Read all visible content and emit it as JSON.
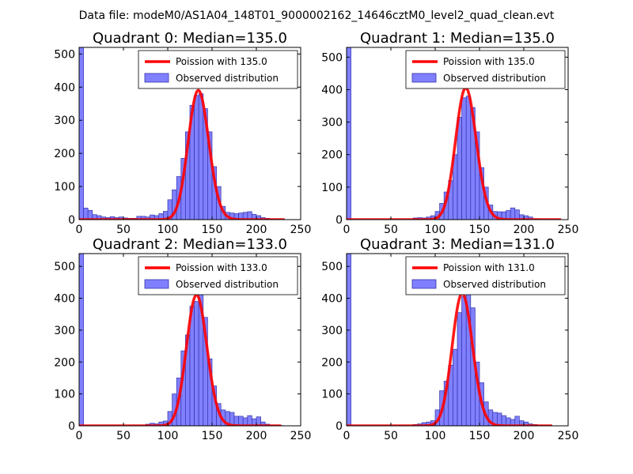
{
  "figure": {
    "suptitle": "Data file: modeM0/AS1A04_148T01_9000002162_14646cztM0_level2_quad_clean.evt",
    "colors": {
      "poisson": "#ff0000",
      "hist_fill": "#8080ff",
      "hist_edge": "#3333aa"
    }
  },
  "chart_data": [
    {
      "type": "bar",
      "title": "Quadrant 0: Median=135.0",
      "xlim": [
        0,
        250
      ],
      "ylim": [
        0,
        520
      ],
      "xticks": [
        0,
        50,
        100,
        150,
        200,
        250
      ],
      "yticks": [
        0,
        100,
        200,
        300,
        400,
        500
      ],
      "legend": {
        "line": "Poission with 135.0",
        "bars": "Observed distribution",
        "position": "top-right"
      },
      "poisson_mean": 135.0,
      "poisson_peak": 390,
      "poisson_range": [
        0,
        232
      ],
      "histogram": {
        "bin_width": 5,
        "bin_starts": [
          0,
          5,
          10,
          15,
          20,
          25,
          30,
          35,
          40,
          45,
          50,
          55,
          60,
          65,
          70,
          75,
          80,
          85,
          90,
          95,
          100,
          105,
          110,
          115,
          120,
          125,
          130,
          135,
          140,
          145,
          150,
          155,
          160,
          165,
          170,
          175,
          180,
          185,
          190,
          195,
          200,
          205,
          210,
          215,
          220,
          225
        ],
        "counts": [
          520,
          35,
          28,
          15,
          12,
          8,
          6,
          9,
          6,
          8,
          5,
          4,
          4,
          10,
          10,
          8,
          14,
          12,
          18,
          25,
          60,
          90,
          130,
          185,
          265,
          345,
          375,
          380,
          335,
          265,
          160,
          100,
          40,
          22,
          20,
          18,
          20,
          22,
          24,
          16,
          12,
          6,
          4,
          2,
          2,
          1
        ]
      }
    },
    {
      "type": "bar",
      "title": "Quadrant 1: Median=135.0",
      "xlim": [
        0,
        250
      ],
      "ylim": [
        0,
        530
      ],
      "xticks": [
        0,
        50,
        100,
        150,
        200,
        250
      ],
      "yticks": [
        0,
        100,
        200,
        300,
        400,
        500
      ],
      "legend": {
        "line": "Poission with 135.0",
        "bars": "Observed distribution",
        "position": "top-right"
      },
      "poisson_mean": 135.0,
      "poisson_peak": 405,
      "poisson_range": [
        0,
        242
      ],
      "histogram": {
        "bin_width": 5,
        "bin_starts": [
          0,
          5,
          10,
          15,
          20,
          25,
          30,
          35,
          40,
          45,
          50,
          55,
          60,
          65,
          70,
          75,
          80,
          85,
          90,
          95,
          100,
          105,
          110,
          115,
          120,
          125,
          130,
          135,
          140,
          145,
          150,
          155,
          160,
          165,
          170,
          175,
          180,
          185,
          190,
          195,
          200,
          205,
          210,
          215,
          220,
          225,
          230,
          235
        ],
        "counts": [
          530,
          0,
          0,
          0,
          0,
          0,
          0,
          0,
          0,
          0,
          0,
          0,
          0,
          0,
          0,
          5,
          6,
          5,
          8,
          12,
          25,
          50,
          85,
          120,
          200,
          315,
          375,
          380,
          345,
          270,
          160,
          100,
          45,
          25,
          24,
          24,
          28,
          36,
          30,
          15,
          12,
          8,
          3,
          2,
          1,
          1,
          1,
          1
        ]
      }
    },
    {
      "type": "bar",
      "title": "Quadrant 2: Median=133.0",
      "xlim": [
        0,
        250
      ],
      "ylim": [
        0,
        540
      ],
      "xticks": [
        0,
        50,
        100,
        150,
        200,
        250
      ],
      "yticks": [
        0,
        100,
        200,
        300,
        400,
        500
      ],
      "legend": {
        "line": "Poission with 133.0",
        "bars": "Observed distribution",
        "position": "top-right"
      },
      "poisson_mean": 133.0,
      "poisson_peak": 410,
      "poisson_range": [
        0,
        228
      ],
      "histogram": {
        "bin_width": 5,
        "bin_starts": [
          0,
          5,
          10,
          15,
          20,
          25,
          30,
          35,
          40,
          45,
          50,
          55,
          60,
          65,
          70,
          75,
          80,
          85,
          90,
          95,
          100,
          105,
          110,
          115,
          120,
          125,
          130,
          135,
          140,
          145,
          150,
          155,
          160,
          165,
          170,
          175,
          180,
          185,
          190,
          195,
          200,
          205,
          210,
          215,
          220,
          225
        ],
        "counts": [
          540,
          0,
          0,
          0,
          0,
          0,
          0,
          0,
          0,
          0,
          0,
          0,
          0,
          0,
          0,
          5,
          8,
          6,
          12,
          15,
          45,
          100,
          150,
          235,
          285,
          375,
          390,
          430,
          340,
          210,
          125,
          70,
          50,
          45,
          42,
          30,
          30,
          25,
          32,
          22,
          28,
          12,
          5,
          2,
          1,
          1
        ]
      }
    },
    {
      "type": "bar",
      "title": "Quadrant 3: Median=131.0",
      "xlim": [
        0,
        250
      ],
      "ylim": [
        0,
        540
      ],
      "xticks": [
        0,
        50,
        100,
        150,
        200,
        250
      ],
      "yticks": [
        0,
        100,
        200,
        300,
        400,
        500
      ],
      "legend": {
        "line": "Poission with 131.0",
        "bars": "Observed distribution",
        "position": "top-right"
      },
      "poisson_mean": 131.0,
      "poisson_peak": 415,
      "poisson_range": [
        0,
        232
      ],
      "histogram": {
        "bin_width": 5,
        "bin_starts": [
          0,
          5,
          10,
          15,
          20,
          25,
          30,
          35,
          40,
          45,
          50,
          55,
          60,
          65,
          70,
          75,
          80,
          85,
          90,
          95,
          100,
          105,
          110,
          115,
          120,
          125,
          130,
          135,
          140,
          145,
          150,
          155,
          160,
          165,
          170,
          175,
          180,
          185,
          190,
          195,
          200,
          205,
          210,
          215,
          220,
          225
        ],
        "counts": [
          540,
          0,
          0,
          0,
          0,
          0,
          0,
          0,
          0,
          0,
          0,
          0,
          0,
          0,
          0,
          4,
          6,
          10,
          12,
          16,
          50,
          110,
          140,
          190,
          240,
          355,
          405,
          470,
          370,
          200,
          135,
          75,
          50,
          42,
          40,
          32,
          25,
          20,
          30,
          16,
          12,
          6,
          4,
          2,
          1,
          1
        ]
      }
    }
  ]
}
